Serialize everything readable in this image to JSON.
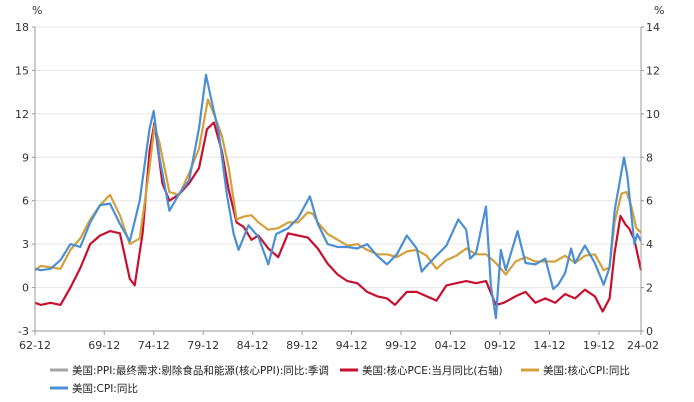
{
  "chart_data": {
    "type": "line",
    "left_axis": {
      "unit": "%",
      "min": -3,
      "max": 18,
      "ticks": [
        -3,
        0,
        3,
        6,
        9,
        12,
        15,
        18
      ]
    },
    "right_axis": {
      "unit": "%",
      "min": 0,
      "max": 14,
      "ticks": [
        0,
        2,
        4,
        6,
        8,
        10,
        12,
        14
      ]
    },
    "x_range": [
      1962.92,
      2024.17
    ],
    "x_ticks": [
      {
        "label": "62-12",
        "year": 1962.92
      },
      {
        "label": "69-12",
        "year": 1969.92
      },
      {
        "label": "74-12",
        "year": 1974.92
      },
      {
        "label": "79-12",
        "year": 1979.92
      },
      {
        "label": "84-12",
        "year": 1984.92
      },
      {
        "label": "89-12",
        "year": 1989.92
      },
      {
        "label": "94-12",
        "year": 1994.92
      },
      {
        "label": "99-12",
        "year": 1999.92
      },
      {
        "label": "04-12",
        "year": 2004.92
      },
      {
        "label": "09-12",
        "year": 2009.92
      },
      {
        "label": "14-12",
        "year": 2014.92
      },
      {
        "label": "19-12",
        "year": 2019.92
      },
      {
        "label": "24-02",
        "year": 2024.17
      }
    ],
    "series": [
      {
        "name": "美国:PPI:最终需求:剔除食品和能源(核心PPI):同比:季调",
        "color": "#a6a6a6",
        "axis": "left",
        "points": []
      },
      {
        "name": "美国:核心PCE:当月同比(右轴)",
        "color": "#c8102e",
        "axis": "right",
        "points": [
          [
            1962.92,
            1.3
          ],
          [
            1963.5,
            1.2
          ],
          [
            1964.5,
            1.3
          ],
          [
            1965.5,
            1.2
          ],
          [
            1966.5,
            2.0
          ],
          [
            1967.5,
            2.9
          ],
          [
            1968.5,
            4.0
          ],
          [
            1969.5,
            4.4
          ],
          [
            1970.5,
            4.6
          ],
          [
            1971.5,
            4.5
          ],
          [
            1972.5,
            2.4
          ],
          [
            1973.0,
            2.1
          ],
          [
            1973.8,
            4.5
          ],
          [
            1974.5,
            8.3
          ],
          [
            1975.0,
            9.6
          ],
          [
            1975.8,
            6.8
          ],
          [
            1976.5,
            6.0
          ],
          [
            1977.5,
            6.3
          ],
          [
            1978.5,
            6.8
          ],
          [
            1979.5,
            7.5
          ],
          [
            1980.3,
            9.3
          ],
          [
            1981.0,
            9.6
          ],
          [
            1981.8,
            8.3
          ],
          [
            1982.5,
            6.5
          ],
          [
            1983.3,
            5.0
          ],
          [
            1984.0,
            4.8
          ],
          [
            1984.8,
            4.2
          ],
          [
            1985.5,
            4.4
          ],
          [
            1986.5,
            3.8
          ],
          [
            1987.5,
            3.4
          ],
          [
            1988.5,
            4.5
          ],
          [
            1989.5,
            4.4
          ],
          [
            1990.5,
            4.3
          ],
          [
            1991.5,
            3.8
          ],
          [
            1992.5,
            3.1
          ],
          [
            1993.5,
            2.6
          ],
          [
            1994.5,
            2.3
          ],
          [
            1995.5,
            2.2
          ],
          [
            1996.5,
            1.8
          ],
          [
            1997.5,
            1.6
          ],
          [
            1998.5,
            1.5
          ],
          [
            1999.3,
            1.2
          ],
          [
            2000.5,
            1.8
          ],
          [
            2001.5,
            1.8
          ],
          [
            2002.5,
            1.6
          ],
          [
            2003.5,
            1.4
          ],
          [
            2004.5,
            2.1
          ],
          [
            2005.5,
            2.2
          ],
          [
            2006.5,
            2.3
          ],
          [
            2007.5,
            2.2
          ],
          [
            2008.5,
            2.3
          ],
          [
            2009.5,
            1.2
          ],
          [
            2010.3,
            1.3
          ],
          [
            2011.5,
            1.6
          ],
          [
            2012.5,
            1.8
          ],
          [
            2013.5,
            1.3
          ],
          [
            2014.5,
            1.5
          ],
          [
            2015.5,
            1.3
          ],
          [
            2016.5,
            1.7
          ],
          [
            2017.5,
            1.5
          ],
          [
            2018.5,
            1.9
          ],
          [
            2019.5,
            1.6
          ],
          [
            2020.3,
            0.9
          ],
          [
            2021.0,
            1.5
          ],
          [
            2021.5,
            3.6
          ],
          [
            2022.1,
            5.3
          ],
          [
            2022.6,
            4.9
          ],
          [
            2023.0,
            4.7
          ],
          [
            2023.5,
            4.2
          ],
          [
            2024.17,
            2.8
          ]
        ]
      },
      {
        "name": "美国:核心CPI:同比",
        "color": "#d4a03c",
        "axis": "left",
        "points": [
          [
            1962.92,
            1.2
          ],
          [
            1963.5,
            1.5
          ],
          [
            1964.5,
            1.4
          ],
          [
            1965.5,
            1.3
          ],
          [
            1966.5,
            2.6
          ],
          [
            1967.5,
            3.4
          ],
          [
            1968.5,
            4.7
          ],
          [
            1969.5,
            5.7
          ],
          [
            1970.5,
            6.4
          ],
          [
            1971.5,
            5.0
          ],
          [
            1972.5,
            3.0
          ],
          [
            1973.5,
            3.4
          ],
          [
            1974.5,
            8.3
          ],
          [
            1975.0,
            11.2
          ],
          [
            1975.5,
            10.0
          ],
          [
            1976.5,
            6.6
          ],
          [
            1977.5,
            6.4
          ],
          [
            1978.5,
            7.9
          ],
          [
            1979.5,
            9.6
          ],
          [
            1980.4,
            13.0
          ],
          [
            1981.0,
            12.0
          ],
          [
            1981.8,
            10.5
          ],
          [
            1982.5,
            8.3
          ],
          [
            1983.3,
            4.7
          ],
          [
            1984.0,
            4.9
          ],
          [
            1984.8,
            5.0
          ],
          [
            1985.5,
            4.5
          ],
          [
            1986.5,
            4.0
          ],
          [
            1987.5,
            4.1
          ],
          [
            1988.5,
            4.5
          ],
          [
            1989.5,
            4.5
          ],
          [
            1990.5,
            5.2
          ],
          [
            1991.0,
            5.1
          ],
          [
            1991.5,
            4.5
          ],
          [
            1992.5,
            3.7
          ],
          [
            1993.5,
            3.3
          ],
          [
            1994.5,
            2.9
          ],
          [
            1995.5,
            3.0
          ],
          [
            1996.5,
            2.6
          ],
          [
            1997.5,
            2.3
          ],
          [
            1998.5,
            2.3
          ],
          [
            1999.5,
            2.1
          ],
          [
            2000.5,
            2.5
          ],
          [
            2001.5,
            2.6
          ],
          [
            2002.5,
            2.2
          ],
          [
            2003.5,
            1.3
          ],
          [
            2004.5,
            1.9
          ],
          [
            2005.5,
            2.2
          ],
          [
            2006.5,
            2.7
          ],
          [
            2007.5,
            2.3
          ],
          [
            2008.5,
            2.3
          ],
          [
            2009.5,
            1.7
          ],
          [
            2010.5,
            0.9
          ],
          [
            2011.5,
            1.8
          ],
          [
            2012.5,
            2.1
          ],
          [
            2013.5,
            1.8
          ],
          [
            2014.5,
            1.8
          ],
          [
            2015.5,
            1.8
          ],
          [
            2016.5,
            2.2
          ],
          [
            2017.5,
            1.7
          ],
          [
            2018.5,
            2.2
          ],
          [
            2019.5,
            2.3
          ],
          [
            2020.4,
            1.2
          ],
          [
            2021.0,
            1.4
          ],
          [
            2021.5,
            4.5
          ],
          [
            2022.2,
            6.5
          ],
          [
            2022.7,
            6.6
          ],
          [
            2023.2,
            5.6
          ],
          [
            2023.7,
            4.1
          ],
          [
            2024.17,
            3.8
          ]
        ]
      },
      {
        "name": "美国:CPI:同比",
        "color": "#4a8fd4",
        "axis": "left",
        "points": [
          [
            1962.92,
            1.3
          ],
          [
            1963.5,
            1.2
          ],
          [
            1964.5,
            1.3
          ],
          [
            1965.5,
            1.9
          ],
          [
            1966.5,
            3.0
          ],
          [
            1967.5,
            2.8
          ],
          [
            1968.5,
            4.5
          ],
          [
            1969.5,
            5.7
          ],
          [
            1970.5,
            5.8
          ],
          [
            1971.5,
            4.4
          ],
          [
            1972.5,
            3.2
          ],
          [
            1973.5,
            6.0
          ],
          [
            1974.5,
            11.0
          ],
          [
            1974.92,
            12.2
          ],
          [
            1975.5,
            9.0
          ],
          [
            1976.5,
            5.3
          ],
          [
            1977.5,
            6.5
          ],
          [
            1978.5,
            7.4
          ],
          [
            1979.5,
            11.0
          ],
          [
            1980.2,
            14.7
          ],
          [
            1980.8,
            12.8
          ],
          [
            1981.5,
            10.7
          ],
          [
            1982.3,
            6.5
          ],
          [
            1983.0,
            3.7
          ],
          [
            1983.5,
            2.6
          ],
          [
            1984.5,
            4.3
          ],
          [
            1985.5,
            3.5
          ],
          [
            1986.5,
            1.6
          ],
          [
            1987.3,
            3.7
          ],
          [
            1988.5,
            4.1
          ],
          [
            1989.5,
            4.8
          ],
          [
            1990.7,
            6.3
          ],
          [
            1991.5,
            4.4
          ],
          [
            1992.5,
            3.0
          ],
          [
            1993.5,
            2.8
          ],
          [
            1994.5,
            2.8
          ],
          [
            1995.5,
            2.7
          ],
          [
            1996.5,
            3.0
          ],
          [
            1997.5,
            2.2
          ],
          [
            1998.5,
            1.6
          ],
          [
            1999.5,
            2.3
          ],
          [
            2000.5,
            3.6
          ],
          [
            2001.5,
            2.7
          ],
          [
            2002.0,
            1.1
          ],
          [
            2002.5,
            1.5
          ],
          [
            2003.5,
            2.2
          ],
          [
            2004.5,
            2.9
          ],
          [
            2005.7,
            4.7
          ],
          [
            2006.5,
            4.0
          ],
          [
            2006.9,
            2.0
          ],
          [
            2007.5,
            2.4
          ],
          [
            2008.5,
            5.6
          ],
          [
            2009.0,
            0.1
          ],
          [
            2009.5,
            -2.1
          ],
          [
            2010.0,
            2.6
          ],
          [
            2010.5,
            1.2
          ],
          [
            2011.7,
            3.9
          ],
          [
            2012.5,
            1.7
          ],
          [
            2013.5,
            1.6
          ],
          [
            2014.5,
            2.0
          ],
          [
            2015.3,
            -0.1
          ],
          [
            2015.8,
            0.2
          ],
          [
            2016.5,
            1.0
          ],
          [
            2017.1,
            2.7
          ],
          [
            2017.5,
            1.7
          ],
          [
            2018.5,
            2.9
          ],
          [
            2019.5,
            1.7
          ],
          [
            2020.4,
            0.2
          ],
          [
            2021.0,
            1.4
          ],
          [
            2021.5,
            5.3
          ],
          [
            2022.45,
            9.0
          ],
          [
            2022.8,
            7.7
          ],
          [
            2023.2,
            5.0
          ],
          [
            2023.5,
            3.0
          ],
          [
            2023.8,
            3.7
          ],
          [
            2024.17,
            3.2
          ]
        ]
      }
    ]
  }
}
